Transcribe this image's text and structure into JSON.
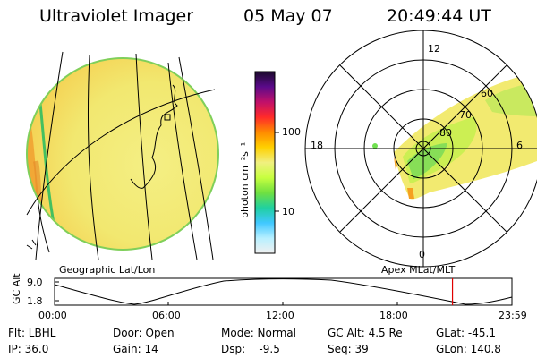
{
  "header": {
    "instrument": "Ultraviolet Imager",
    "date": "05 May 07",
    "time": "20:49:44 UT"
  },
  "colorbar": {
    "label": "photon cm⁻²s⁻¹",
    "ticks": [
      "100",
      "10"
    ],
    "colors": [
      "#1a0a2a",
      "#5a0a8a",
      "#c0106a",
      "#ff2a2a",
      "#ff8a00",
      "#ffd000",
      "#f0f080",
      "#c8ff40",
      "#70e040",
      "#20d0a0",
      "#40c8ff",
      "#b8f0ff",
      "#f0f0f0"
    ]
  },
  "geo_panel": {
    "label": "Geographic Lat/Lon"
  },
  "polar_panel": {
    "label": "Apex MLat/MLT",
    "mlt_labels": [
      "12",
      "18",
      "6",
      "0"
    ],
    "mlat_labels": [
      "60",
      "70",
      "80"
    ]
  },
  "altitude_plot": {
    "ylabel": "GC Alt",
    "yticks": [
      "9.0",
      "1.8"
    ],
    "xticks": [
      "00:00",
      "06:00",
      "12:00",
      "18:00",
      "23:59"
    ],
    "current_time_fraction": 0.87
  },
  "info": {
    "row1": [
      "Flt: LBHL",
      "Door: Open",
      "Mode: Normal",
      "GC Alt: 4.5 Re",
      "GLat: -45.1"
    ],
    "row2": [
      "IP: 36.0",
      "Gain: 14",
      "Dsp:    -9.5",
      "Seq: 39",
      "GLon: 140.8"
    ]
  },
  "accent": {
    "marker": "#e00000"
  }
}
